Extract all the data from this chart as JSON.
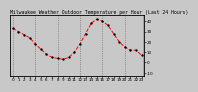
{
  "title": "Milwaukee Weather Outdoor Temperature per Hour (Last 24 Hours)",
  "hours": [
    0,
    1,
    2,
    3,
    4,
    5,
    6,
    7,
    8,
    9,
    10,
    11,
    12,
    13,
    14,
    15,
    16,
    17,
    18,
    19,
    20,
    21,
    22,
    23
  ],
  "temps": [
    33,
    30,
    27,
    24,
    18,
    13,
    8,
    5,
    4,
    3,
    5,
    10,
    18,
    28,
    38,
    42,
    40,
    36,
    28,
    20,
    15,
    12,
    12,
    7
  ],
  "line_color": "#ff0000",
  "marker_color": "#000000",
  "bg_color": "#c8c8c8",
  "plot_bg_color": "#c8c8c8",
  "grid_color": "#606060",
  "yticks": [
    -10,
    0,
    10,
    20,
    30,
    40
  ],
  "ylim": [
    -13,
    46
  ],
  "xlim": [
    -0.5,
    23.5
  ],
  "vgrid_positions": [
    0,
    4,
    8,
    12,
    16,
    20
  ],
  "title_fontsize": 3.5,
  "tick_fontsize": 3.0,
  "linewidth": 0.7,
  "markersize": 1.3
}
